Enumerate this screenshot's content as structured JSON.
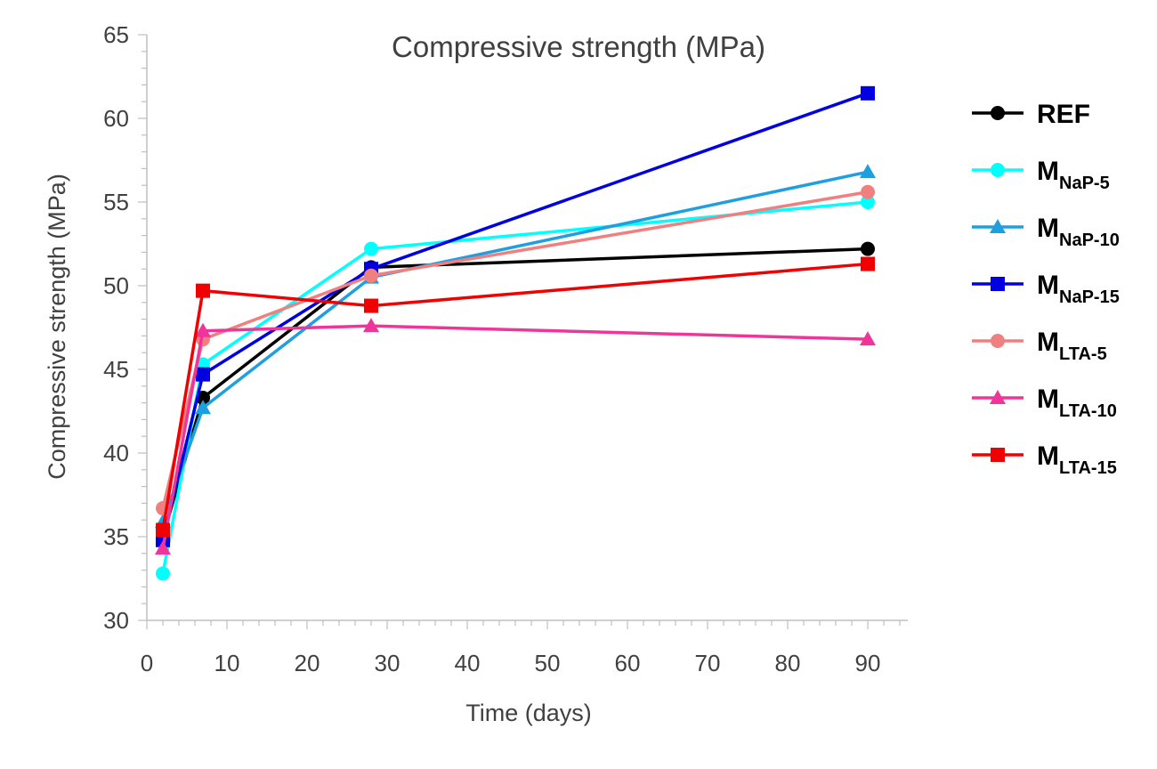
{
  "chart_data": {
    "type": "line",
    "title": "Compressive strength (MPa)",
    "xlabel": "Time (days)",
    "ylabel": "Compressive strength (MPa)",
    "xlim": [
      0,
      95
    ],
    "ylim": [
      30,
      65
    ],
    "xticks": [
      0,
      10,
      20,
      30,
      40,
      50,
      60,
      70,
      80,
      90
    ],
    "yticks": [
      30,
      35,
      40,
      45,
      50,
      55,
      60,
      65
    ],
    "legend_position": "right",
    "grid": false,
    "x": [
      2,
      7,
      28,
      90
    ],
    "series": [
      {
        "name": "REF",
        "main": "REF",
        "sub": "",
        "color": "#000000",
        "marker": "circle",
        "values": [
          35.0,
          43.3,
          51.1,
          52.2
        ]
      },
      {
        "name": "MNaP-5",
        "main": "M",
        "sub": "NaP-5",
        "color": "#00FFFF",
        "marker": "circle",
        "values": [
          32.8,
          45.3,
          52.2,
          55.0
        ]
      },
      {
        "name": "MNaP-10",
        "main": "M",
        "sub": "NaP-10",
        "color": "#1E9FE0",
        "marker": "triangle",
        "values": [
          35.9,
          42.7,
          50.5,
          56.8
        ]
      },
      {
        "name": "MNaP-15",
        "main": "M",
        "sub": "NaP-15",
        "color": "#0000E0",
        "marker": "square",
        "values": [
          34.8,
          44.7,
          51.0,
          61.5
        ]
      },
      {
        "name": "MLTA-5",
        "main": "M",
        "sub": "LTA-5",
        "color": "#F08080",
        "marker": "circle",
        "values": [
          36.7,
          46.8,
          50.6,
          55.6
        ]
      },
      {
        "name": "MLTA-10",
        "main": "M",
        "sub": "LTA-10",
        "color": "#F0359A",
        "marker": "triangle",
        "values": [
          34.3,
          47.3,
          47.6,
          46.8
        ]
      },
      {
        "name": "MLTA-15",
        "main": "M",
        "sub": "LTA-15",
        "color": "#F00000",
        "marker": "square",
        "values": [
          35.4,
          49.7,
          48.8,
          51.3
        ]
      }
    ]
  }
}
